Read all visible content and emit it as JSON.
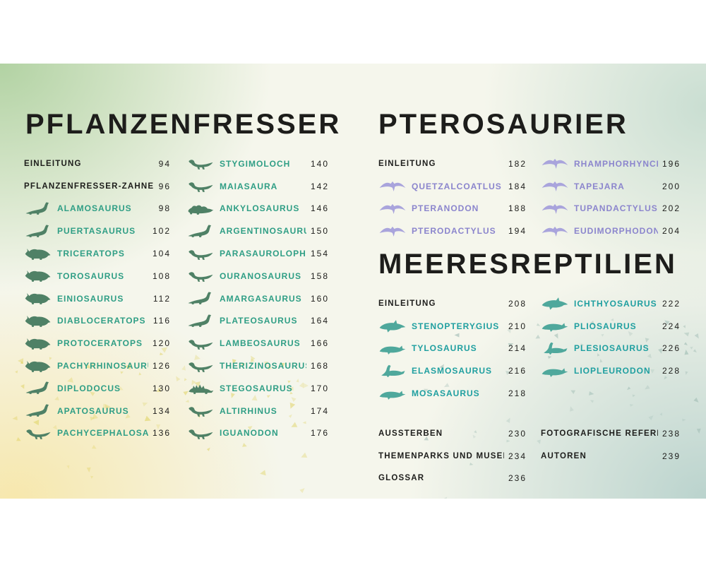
{
  "colors": {
    "ink": "#1d1d1b",
    "herbivore_name": "#2f9e85",
    "herbivore_icon": "#4f8166",
    "pterosaur_name": "#8b85cd",
    "pterosaur_icon": "#a9a4dc",
    "marine_name": "#1f9fa0",
    "marine_icon": "#4fa89c",
    "confetti": "#ddcf55",
    "flock": "#9cb9b1"
  },
  "left": {
    "title": "PFLANZENFRESSER",
    "columns": [
      [
        {
          "label": "EINLEITUNG",
          "page": "94"
        },
        {
          "label": "PFLANZENFRESSER-ZÄHNE",
          "page": "96"
        },
        {
          "label": "ALAMOSAURUS",
          "page": "98",
          "icon": "sauropod"
        },
        {
          "label": "PUERTASAURUS",
          "page": "102",
          "icon": "sauropod"
        },
        {
          "label": "TRICERATOPS",
          "page": "104",
          "icon": "ceratopsian"
        },
        {
          "label": "TOROSAURUS",
          "page": "108",
          "icon": "ceratopsian"
        },
        {
          "label": "EINIOSAURUS",
          "page": "112",
          "icon": "ceratopsian"
        },
        {
          "label": "DIABLOCERATOPS",
          "page": "116",
          "icon": "ceratopsian"
        },
        {
          "label": "PROTOCERATOPS",
          "page": "120",
          "icon": "ceratopsian"
        },
        {
          "label": "PACHYRHINOSAURUS",
          "page": "126",
          "icon": "ceratopsian"
        },
        {
          "label": "DIPLODOCUS",
          "page": "130",
          "icon": "sauropod"
        },
        {
          "label": "APATOSAURUS",
          "page": "134",
          "icon": "sauropod"
        },
        {
          "label": "PACHYCEPHALOSAURUS",
          "page": "136",
          "icon": "biped"
        }
      ],
      [
        {
          "label": "STYGIMOLOCH",
          "page": "140",
          "icon": "biped"
        },
        {
          "label": "MAIASAURA",
          "page": "142",
          "icon": "biped"
        },
        {
          "label": "ANKYLOSAURUS",
          "page": "146",
          "icon": "ankylosaur"
        },
        {
          "label": "ARGENTINOSAURUS",
          "page": "150",
          "icon": "sauropod"
        },
        {
          "label": "PARASAUROLOPHUS",
          "page": "154",
          "icon": "biped"
        },
        {
          "label": "OURANOSAURUS",
          "page": "158",
          "icon": "biped"
        },
        {
          "label": "AMARGASAURUS",
          "page": "160",
          "icon": "sauropod"
        },
        {
          "label": "PLATEOSAURUS",
          "page": "164",
          "icon": "sauropod"
        },
        {
          "label": "LAMBEOSAURUS",
          "page": "166",
          "icon": "biped"
        },
        {
          "label": "THERIZINOSAURUS",
          "page": "168",
          "icon": "biped"
        },
        {
          "label": "STEGOSAURUS",
          "page": "170",
          "icon": "stegosaur"
        },
        {
          "label": "ALTIRHINUS",
          "page": "174",
          "icon": "biped"
        },
        {
          "label": "IGUANODON",
          "page": "176",
          "icon": "biped"
        }
      ]
    ]
  },
  "pterosaurier": {
    "title": "PTEROSAURIER",
    "columns": [
      [
        {
          "label": "EINLEITUNG",
          "page": "182"
        },
        {
          "label": "QUETZALCOATLUS",
          "page": "184",
          "icon": "pterosaur"
        },
        {
          "label": "PTERANODON",
          "page": "188",
          "icon": "pterosaur"
        },
        {
          "label": "PTERODACTYLUS",
          "page": "194",
          "icon": "pterosaur"
        }
      ],
      [
        {
          "label": "RHAMPHORHYNCHUS",
          "page": "196",
          "icon": "pterosaur"
        },
        {
          "label": "TAPEJARA",
          "page": "200",
          "icon": "pterosaur"
        },
        {
          "label": "TUPANDACTYLUS",
          "page": "202",
          "icon": "pterosaur"
        },
        {
          "label": "EUDIMORPHODON",
          "page": "204",
          "icon": "pterosaur"
        }
      ]
    ]
  },
  "meeresreptilien": {
    "title": "MEERESREPTILIEN",
    "columns": [
      [
        {
          "label": "EINLEITUNG",
          "page": "208"
        },
        {
          "label": "STENOPTERYGIUS",
          "page": "210",
          "icon": "ichthyosaur"
        },
        {
          "label": "TYLOSAURUS",
          "page": "214",
          "icon": "mosasaur"
        },
        {
          "label": "ELASMOSAURUS",
          "page": "216",
          "icon": "plesiosaur"
        },
        {
          "label": "MOSASAURUS",
          "page": "218",
          "icon": "mosasaur"
        }
      ],
      [
        {
          "label": "ICHTHYOSAURUS",
          "page": "222",
          "icon": "ichthyosaur"
        },
        {
          "label": "PLIOSAURUS",
          "page": "224",
          "icon": "mosasaur"
        },
        {
          "label": "PLESIOSAURUS",
          "page": "226",
          "icon": "plesiosaur"
        },
        {
          "label": "LIOPLEURODON",
          "page": "228",
          "icon": "mosasaur"
        }
      ]
    ]
  },
  "footer": {
    "columns": [
      [
        {
          "label": "AUSSTERBEN",
          "page": "230"
        },
        {
          "label": "THEMENPARKS UND MUSEEN",
          "page": "234"
        },
        {
          "label": "GLOSSAR",
          "page": "236"
        }
      ],
      [
        {
          "label": "FOTOGRAFISCHE REFERENZEN",
          "page": "238"
        },
        {
          "label": "AUTOREN",
          "page": "239"
        }
      ]
    ]
  }
}
